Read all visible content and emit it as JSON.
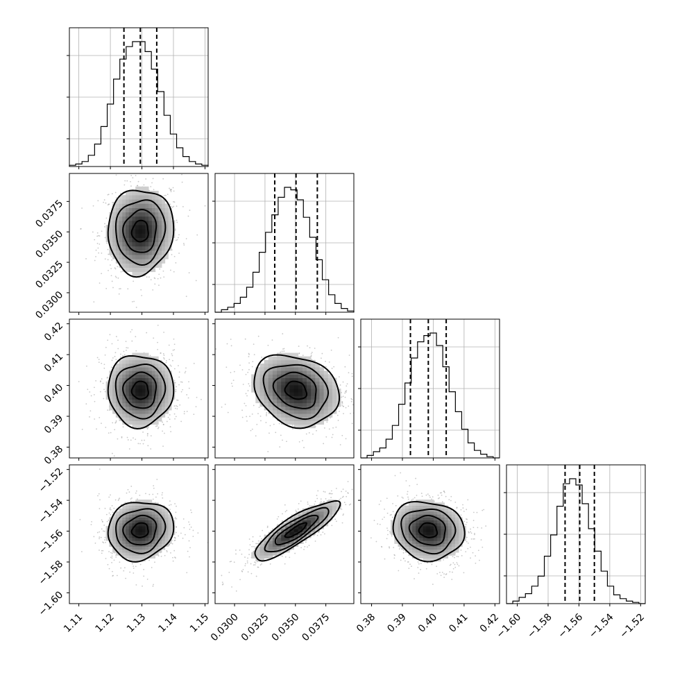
{
  "chart_data": {
    "type": "corner",
    "title": "",
    "grid": true,
    "colors": {
      "frame": "#000000",
      "grid": "#b0b0b0",
      "scatter": "#9a9a9a",
      "density": "#000000"
    },
    "parameters": [
      {
        "name": "",
        "mean": 1.1295,
        "std": 0.0052,
        "quantiles": [
          1.1243,
          1.1295,
          1.1347
        ],
        "xlim": [
          1.107,
          1.151
        ],
        "ticks": [
          1.11,
          1.12,
          1.13,
          1.14,
          1.15
        ],
        "tick_labels": [
          "1.11",
          "1.12",
          "1.13",
          "1.14",
          "1.15"
        ]
      },
      {
        "name": "",
        "mean": 0.03505,
        "std": 0.00175,
        "quantiles": [
          0.0333,
          0.03505,
          0.0368
        ],
        "xlim": [
          0.0284,
          0.0398
        ],
        "ticks": [
          0.03,
          0.0325,
          0.035,
          0.0375
        ],
        "tick_labels": [
          "0.0300",
          "0.0325",
          "0.0350",
          "0.0375"
        ]
      },
      {
        "name": "",
        "mean": 0.3984,
        "std": 0.0058,
        "quantiles": [
          0.3926,
          0.3984,
          0.4042
        ],
        "xlim": [
          0.3765,
          0.4215
        ],
        "ticks": [
          0.38,
          0.39,
          0.4,
          0.41,
          0.42
        ],
        "tick_labels": [
          "0.38",
          "0.39",
          "0.40",
          "0.41",
          "0.42"
        ]
      },
      {
        "name": "",
        "mean": -1.5595,
        "std": 0.0095,
        "quantiles": [
          -1.569,
          -1.5595,
          -1.55
        ],
        "xlim": [
          -1.607,
          -1.517
        ],
        "ticks": [
          -1.6,
          -1.58,
          -1.56,
          -1.54,
          -1.52
        ],
        "tick_labels": [
          "−1.60",
          "−1.58",
          "−1.56",
          "−1.54",
          "−1.52"
        ]
      }
    ],
    "histograms": [
      {
        "param": 0,
        "bin_edges": [
          1.107,
          1.151
        ],
        "counts": [
          0.01,
          0.02,
          0.04,
          0.09,
          0.18,
          0.32,
          0.5,
          0.7,
          0.86,
          0.96,
          1.0,
          1.0,
          0.92,
          0.78,
          0.6,
          0.41,
          0.26,
          0.15,
          0.08,
          0.04,
          0.02,
          0.01
        ]
      },
      {
        "param": 1,
        "bin_edges": [
          0.0284,
          0.0398
        ],
        "counts": [
          0.0,
          0.02,
          0.04,
          0.07,
          0.12,
          0.2,
          0.32,
          0.48,
          0.64,
          0.78,
          0.92,
          1.0,
          0.98,
          0.9,
          0.76,
          0.6,
          0.42,
          0.26,
          0.14,
          0.07,
          0.03,
          0.01
        ]
      },
      {
        "param": 2,
        "bin_edges": [
          0.3765,
          0.4215
        ],
        "counts": [
          0.0,
          0.02,
          0.05,
          0.08,
          0.15,
          0.26,
          0.43,
          0.6,
          0.8,
          0.93,
          0.98,
          1.0,
          0.9,
          0.73,
          0.53,
          0.37,
          0.23,
          0.12,
          0.06,
          0.03,
          0.01,
          0.0
        ]
      },
      {
        "param": 3,
        "bin_edges": [
          -1.607,
          -1.517
        ],
        "counts": [
          0.0,
          0.02,
          0.05,
          0.08,
          0.14,
          0.22,
          0.38,
          0.55,
          0.78,
          0.96,
          1.0,
          0.95,
          0.8,
          0.6,
          0.42,
          0.26,
          0.14,
          0.07,
          0.04,
          0.02,
          0.01,
          0.0
        ]
      }
    ],
    "pairs": [
      {
        "x": 0,
        "y": 1,
        "correlation": 0.05
      },
      {
        "x": 0,
        "y": 2,
        "correlation": 0.0
      },
      {
        "x": 1,
        "y": 2,
        "correlation": -0.2
      },
      {
        "x": 0,
        "y": 3,
        "correlation": 0.1
      },
      {
        "x": 1,
        "y": 3,
        "correlation": 0.85
      },
      {
        "x": 2,
        "y": 3,
        "correlation": -0.1
      }
    ],
    "contour_levels_sigma": [
      0.5,
      1.0,
      1.5,
      2.0
    ]
  }
}
